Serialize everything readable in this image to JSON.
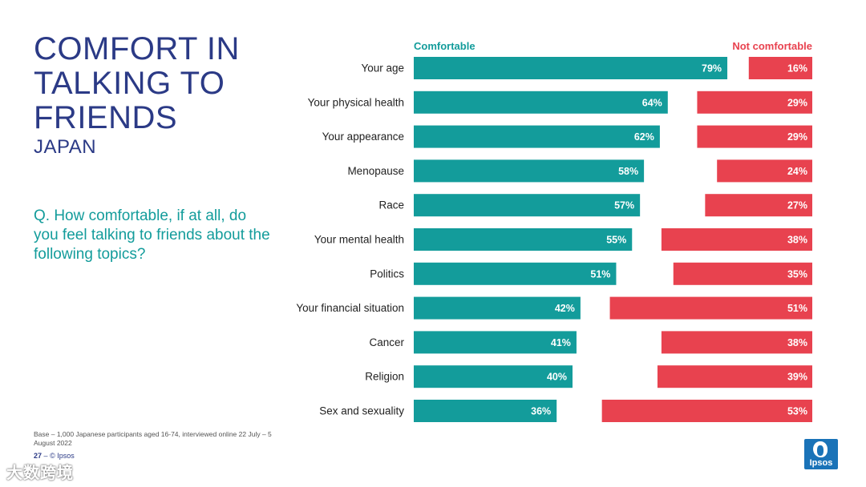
{
  "title": {
    "lines": [
      "COMFORT IN",
      "TALKING TO",
      "FRIENDS"
    ],
    "subtitle": "JAPAN"
  },
  "question": "Q. How comfortable, if at all, do you feel talking to friends about the following topics?",
  "legend": {
    "comfortable": "Comfortable",
    "not_comfortable": "Not comfortable"
  },
  "colors": {
    "comfortable": "#139c9b",
    "not_comfortable": "#e8424f",
    "title": "#2b3a86"
  },
  "chart_data": {
    "type": "bar",
    "orientation": "horizontal",
    "categories": [
      "Your age",
      "Your physical health",
      "Your appearance",
      "Menopause",
      "Race",
      "Your mental health",
      "Politics",
      "Your financial situation",
      "Cancer",
      "Religion",
      "Sex and sexuality"
    ],
    "series": [
      {
        "name": "Comfortable",
        "values": [
          79,
          64,
          62,
          58,
          57,
          55,
          51,
          42,
          41,
          40,
          36
        ],
        "align": "left"
      },
      {
        "name": "Not comfortable",
        "values": [
          16,
          29,
          29,
          24,
          27,
          38,
          35,
          51,
          38,
          39,
          53
        ],
        "align": "right"
      }
    ],
    "unit": "%",
    "xlim": [
      0,
      100
    ]
  },
  "base_note": "Base – 1,000 Japanese participants aged 16-74, interviewed online 22 July – 5 August 2022",
  "footer": {
    "page": "27",
    "dash": "–",
    "copyright": "© Ipsos"
  },
  "logo": {
    "text": "Ipsos"
  },
  "watermark": "大数跨境"
}
